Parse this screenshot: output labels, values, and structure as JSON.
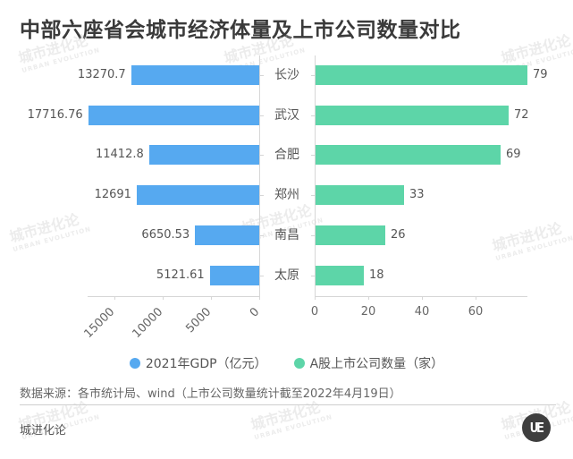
{
  "title": "中部六座省会城市经济体量及上市公司数量对比",
  "legend": [
    {
      "label": "2021年GDP（亿元）",
      "color": "#56a9f0"
    },
    {
      "label": "A股上市公司数量（家）",
      "color": "#5dd5a8"
    }
  ],
  "source": "数据来源：各市统计局、wind（上市公司数量统计截至2022年4月19日）",
  "brand": "城进化论",
  "logo_text": "UE",
  "watermark": {
    "cn": "城市进化论",
    "en": "URBAN EVOLUTION"
  },
  "chart_data": {
    "type": "bar",
    "orientation": "horizontal-butterfly",
    "title": "中部六座省会城市经济体量及上市公司数量对比",
    "categories": [
      "长沙",
      "武汉",
      "合肥",
      "郑州",
      "南昌",
      "太原"
    ],
    "series": [
      {
        "name": "2021年GDP（亿元）",
        "color": "#56a9f0",
        "values": [
          13270.7,
          17716.76,
          11412.8,
          12691,
          6650.53,
          5121.61
        ],
        "labels": [
          "13270.7",
          "17716.76",
          "11412.8",
          "12691",
          "6650.53",
          "5121.61"
        ],
        "axis": "left",
        "xticks": [
          "15000",
          "10000",
          "5000",
          "0"
        ],
        "xlim": [
          0,
          17800
        ]
      },
      {
        "name": "A股上市公司数量（家）",
        "color": "#5dd5a8",
        "values": [
          79,
          72,
          69,
          33,
          26,
          18
        ],
        "labels": [
          "79",
          "72",
          "69",
          "33",
          "26",
          "18"
        ],
        "axis": "right",
        "xticks": [
          "0",
          "20",
          "40",
          "60"
        ],
        "xlim": [
          0,
          79
        ]
      }
    ],
    "legend_position": "bottom",
    "grid": false
  }
}
